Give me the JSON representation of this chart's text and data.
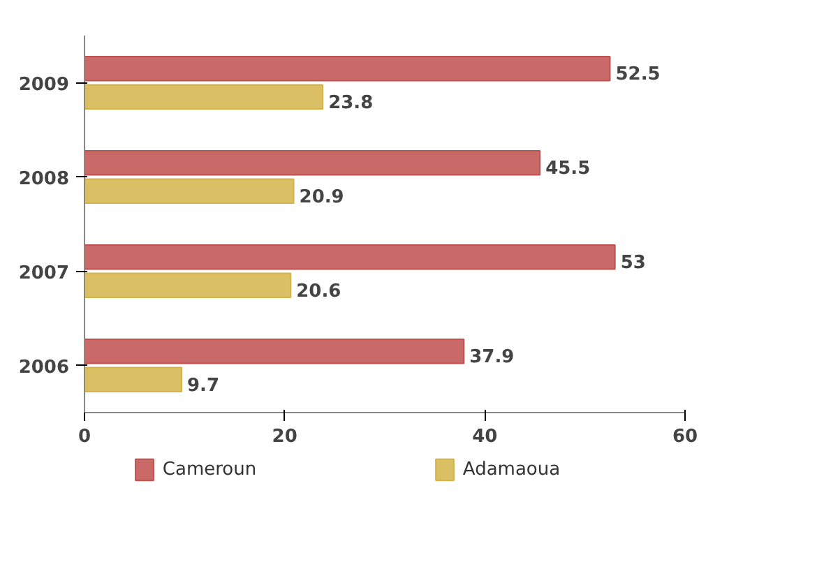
{
  "chart_data": {
    "type": "bar",
    "orientation": "horizontal",
    "categories": [
      "2009",
      "2008",
      "2007",
      "2006"
    ],
    "series": [
      {
        "name": "Cameroun",
        "color": "#c0504d",
        "values": [
          52.5,
          45.5,
          53,
          37.9
        ]
      },
      {
        "name": "Adamaoua",
        "color": "#d4b44a",
        "values": [
          23.8,
          20.9,
          20.6,
          9.7
        ]
      }
    ],
    "xlim": [
      0,
      60
    ],
    "xticks": [
      0,
      20,
      40,
      60
    ],
    "data_labels": true,
    "legend": "bottom",
    "grid": false
  }
}
